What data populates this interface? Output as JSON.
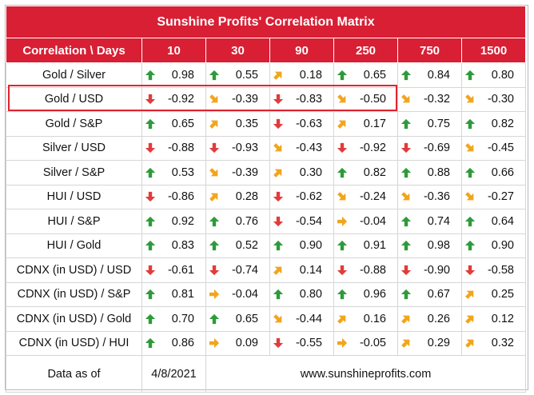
{
  "title": "Sunshine Profits' Correlation Matrix",
  "header": {
    "corner_label": "Correlation \\ Days",
    "periods": [
      "10",
      "30",
      "90",
      "250",
      "750",
      "1500"
    ]
  },
  "colors": {
    "header_bg": "#d81f34",
    "up_green": "#2e9b3a",
    "down_red": "#e23b3b",
    "neutral_amber": "#f2a51c",
    "highlight_border": "#e0232f"
  },
  "rows": [
    {
      "pair": "Gold / Silver",
      "cells": [
        {
          "v": "0.98",
          "icon": "up-arrow-icon"
        },
        {
          "v": "0.55",
          "icon": "up-arrow-icon"
        },
        {
          "v": "0.18",
          "icon": "up-right-arrow-icon"
        },
        {
          "v": "0.65",
          "icon": "up-arrow-icon"
        },
        {
          "v": "0.84",
          "icon": "up-arrow-icon"
        },
        {
          "v": "0.80",
          "icon": "up-arrow-icon"
        }
      ]
    },
    {
      "pair": "Gold / USD",
      "highlighted": true,
      "cells": [
        {
          "v": "-0.92",
          "icon": "down-arrow-icon"
        },
        {
          "v": "-0.39",
          "icon": "down-right-arrow-icon"
        },
        {
          "v": "-0.83",
          "icon": "down-arrow-icon"
        },
        {
          "v": "-0.50",
          "icon": "down-right-arrow-icon"
        },
        {
          "v": "-0.32",
          "icon": "down-right-arrow-icon"
        },
        {
          "v": "-0.30",
          "icon": "down-right-arrow-icon"
        }
      ]
    },
    {
      "pair": "Gold / S&P",
      "cells": [
        {
          "v": "0.65",
          "icon": "up-arrow-icon"
        },
        {
          "v": "0.35",
          "icon": "up-right-arrow-icon"
        },
        {
          "v": "-0.63",
          "icon": "down-arrow-icon"
        },
        {
          "v": "0.17",
          "icon": "up-right-arrow-icon"
        },
        {
          "v": "0.75",
          "icon": "up-arrow-icon"
        },
        {
          "v": "0.82",
          "icon": "up-arrow-icon"
        }
      ]
    },
    {
      "pair": "Silver / USD",
      "cells": [
        {
          "v": "-0.88",
          "icon": "down-arrow-icon"
        },
        {
          "v": "-0.93",
          "icon": "down-arrow-icon"
        },
        {
          "v": "-0.43",
          "icon": "down-right-arrow-icon"
        },
        {
          "v": "-0.92",
          "icon": "down-arrow-icon"
        },
        {
          "v": "-0.69",
          "icon": "down-arrow-icon"
        },
        {
          "v": "-0.45",
          "icon": "down-right-arrow-icon"
        }
      ]
    },
    {
      "pair": "Silver / S&P",
      "cells": [
        {
          "v": "0.53",
          "icon": "up-arrow-icon"
        },
        {
          "v": "-0.39",
          "icon": "down-right-arrow-icon"
        },
        {
          "v": "0.30",
          "icon": "up-right-arrow-icon"
        },
        {
          "v": "0.82",
          "icon": "up-arrow-icon"
        },
        {
          "v": "0.88",
          "icon": "up-arrow-icon"
        },
        {
          "v": "0.66",
          "icon": "up-arrow-icon"
        }
      ]
    },
    {
      "pair": "HUI / USD",
      "cells": [
        {
          "v": "-0.86",
          "icon": "down-arrow-icon"
        },
        {
          "v": "0.28",
          "icon": "up-right-arrow-icon"
        },
        {
          "v": "-0.62",
          "icon": "down-arrow-icon"
        },
        {
          "v": "-0.24",
          "icon": "down-right-arrow-icon"
        },
        {
          "v": "-0.36",
          "icon": "down-right-arrow-icon"
        },
        {
          "v": "-0.27",
          "icon": "down-right-arrow-icon"
        }
      ]
    },
    {
      "pair": "HUI / S&P",
      "cells": [
        {
          "v": "0.92",
          "icon": "up-arrow-icon"
        },
        {
          "v": "0.76",
          "icon": "up-arrow-icon"
        },
        {
          "v": "-0.54",
          "icon": "down-arrow-icon"
        },
        {
          "v": "-0.04",
          "icon": "right-arrow-icon"
        },
        {
          "v": "0.74",
          "icon": "up-arrow-icon"
        },
        {
          "v": "0.64",
          "icon": "up-arrow-icon"
        }
      ]
    },
    {
      "pair": "HUI / Gold",
      "cells": [
        {
          "v": "0.83",
          "icon": "up-arrow-icon"
        },
        {
          "v": "0.52",
          "icon": "up-arrow-icon"
        },
        {
          "v": "0.90",
          "icon": "up-arrow-icon"
        },
        {
          "v": "0.91",
          "icon": "up-arrow-icon"
        },
        {
          "v": "0.98",
          "icon": "up-arrow-icon"
        },
        {
          "v": "0.90",
          "icon": "up-arrow-icon"
        }
      ]
    },
    {
      "pair": "CDNX (in USD) / USD",
      "cells": [
        {
          "v": "-0.61",
          "icon": "down-arrow-icon"
        },
        {
          "v": "-0.74",
          "icon": "down-arrow-icon"
        },
        {
          "v": "0.14",
          "icon": "up-right-arrow-icon"
        },
        {
          "v": "-0.88",
          "icon": "down-arrow-icon"
        },
        {
          "v": "-0.90",
          "icon": "down-arrow-icon"
        },
        {
          "v": "-0.58",
          "icon": "down-arrow-icon"
        }
      ]
    },
    {
      "pair": "CDNX (in USD) / S&P",
      "cells": [
        {
          "v": "0.81",
          "icon": "up-arrow-icon"
        },
        {
          "v": "-0.04",
          "icon": "right-arrow-icon"
        },
        {
          "v": "0.80",
          "icon": "up-arrow-icon"
        },
        {
          "v": "0.96",
          "icon": "up-arrow-icon"
        },
        {
          "v": "0.67",
          "icon": "up-arrow-icon"
        },
        {
          "v": "0.25",
          "icon": "up-right-arrow-icon"
        }
      ]
    },
    {
      "pair": "CDNX (in USD) / Gold",
      "cells": [
        {
          "v": "0.70",
          "icon": "up-arrow-icon"
        },
        {
          "v": "0.65",
          "icon": "up-arrow-icon"
        },
        {
          "v": "-0.44",
          "icon": "down-right-arrow-icon"
        },
        {
          "v": "0.16",
          "icon": "up-right-arrow-icon"
        },
        {
          "v": "0.26",
          "icon": "up-right-arrow-icon"
        },
        {
          "v": "0.12",
          "icon": "up-right-arrow-icon"
        }
      ]
    },
    {
      "pair": "CDNX (in USD) / HUI",
      "cells": [
        {
          "v": "0.86",
          "icon": "up-arrow-icon"
        },
        {
          "v": "0.09",
          "icon": "right-arrow-icon"
        },
        {
          "v": "-0.55",
          "icon": "down-arrow-icon"
        },
        {
          "v": "-0.05",
          "icon": "right-arrow-icon"
        },
        {
          "v": "0.29",
          "icon": "up-right-arrow-icon"
        },
        {
          "v": "0.32",
          "icon": "up-right-arrow-icon"
        }
      ]
    }
  ],
  "footer": {
    "label": "Data as of",
    "date": "4/8/2021",
    "website": "www.sunshineprofits.com"
  }
}
